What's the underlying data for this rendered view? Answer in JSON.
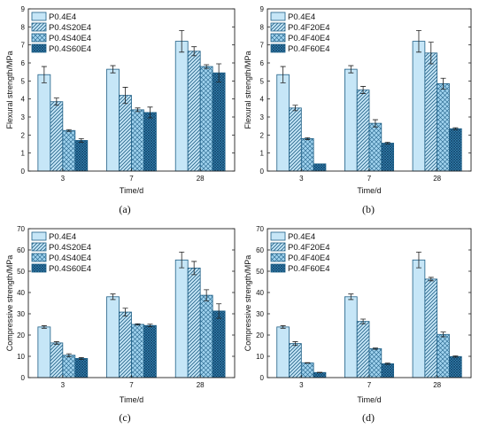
{
  "colors": {
    "bar_fill": "#c6e6f7",
    "bar_edge": "#1f5f86",
    "hatch": "#1f5f86",
    "dense_hatch": "#14527a"
  },
  "chart_data": [
    {
      "type": "bar",
      "caption": "(a)",
      "xlabel": "Time/d",
      "ylabel": "Flexural strength/MPa",
      "ylim": [
        0,
        9
      ],
      "yticks": [
        0,
        1,
        2,
        3,
        4,
        5,
        6,
        7,
        8,
        9
      ],
      "categories": [
        "3",
        "7",
        "28"
      ],
      "legend_placement": "top-left",
      "series": [
        {
          "name": "P0.4E4",
          "pattern": "solid",
          "values": [
            5.35,
            5.65,
            7.2
          ],
          "errors": [
            0.45,
            0.2,
            0.6
          ]
        },
        {
          "name": "P0.4S20E4",
          "pattern": "diag",
          "values": [
            3.85,
            4.2,
            6.65
          ],
          "errors": [
            0.2,
            0.45,
            0.25
          ]
        },
        {
          "name": "P0.4S40E4",
          "pattern": "cross",
          "values": [
            2.25,
            3.4,
            5.8
          ],
          "errors": [
            0.05,
            0.1,
            0.1
          ]
        },
        {
          "name": "P0.4S60E4",
          "pattern": "dense",
          "values": [
            1.7,
            3.25,
            5.45
          ],
          "errors": [
            0.1,
            0.3,
            0.5
          ]
        }
      ]
    },
    {
      "type": "bar",
      "caption": "(b)",
      "xlabel": "Time/d",
      "ylabel": "Flexural strength/MPa",
      "ylim": [
        0,
        9
      ],
      "yticks": [
        0,
        1,
        2,
        3,
        4,
        5,
        6,
        7,
        8,
        9
      ],
      "categories": [
        "3",
        "7",
        "28"
      ],
      "legend_placement": "top-left",
      "series": [
        {
          "name": "P0.4E4",
          "pattern": "solid",
          "values": [
            5.35,
            5.65,
            7.2
          ],
          "errors": [
            0.45,
            0.2,
            0.6
          ]
        },
        {
          "name": "P0.4F20E4",
          "pattern": "diag",
          "values": [
            3.5,
            4.5,
            6.55
          ],
          "errors": [
            0.15,
            0.2,
            0.6
          ]
        },
        {
          "name": "P0.4F40E4",
          "pattern": "cross",
          "values": [
            1.8,
            2.65,
            4.85
          ],
          "errors": [
            0.05,
            0.2,
            0.3
          ]
        },
        {
          "name": "P0.4F60E4",
          "pattern": "dense",
          "values": [
            0.4,
            1.55,
            2.35
          ],
          "errors": [
            0.0,
            0.05,
            0.05
          ]
        }
      ]
    },
    {
      "type": "bar",
      "caption": "(c)",
      "xlabel": "Time/d",
      "ylabel": "Compressive strength/MPa",
      "ylim": [
        0,
        70
      ],
      "yticks": [
        0,
        10,
        20,
        30,
        40,
        50,
        60,
        70
      ],
      "categories": [
        "3",
        "7",
        "28"
      ],
      "legend_placement": "top-left",
      "series": [
        {
          "name": "P0.4E4",
          "pattern": "solid",
          "values": [
            23.8,
            38.0,
            55.3
          ],
          "errors": [
            0.6,
            1.3,
            3.7
          ]
        },
        {
          "name": "P0.4S20E4",
          "pattern": "diag",
          "values": [
            16.3,
            30.8,
            51.5
          ],
          "errors": [
            0.6,
            1.8,
            3.1
          ]
        },
        {
          "name": "P0.4S40E4",
          "pattern": "cross",
          "values": [
            10.5,
            25.0,
            38.7
          ],
          "errors": [
            0.7,
            0.3,
            2.6
          ]
        },
        {
          "name": "P0.4S60E4",
          "pattern": "dense",
          "values": [
            9.0,
            24.5,
            31.3
          ],
          "errors": [
            0.4,
            0.6,
            3.4
          ]
        }
      ]
    },
    {
      "type": "bar",
      "caption": "(d)",
      "xlabel": "Time/d",
      "ylabel": "Compressive strength/MPa",
      "ylim": [
        0,
        70
      ],
      "yticks": [
        0,
        10,
        20,
        30,
        40,
        50,
        60,
        70
      ],
      "categories": [
        "3",
        "7",
        "28"
      ],
      "legend_placement": "top-left",
      "series": [
        {
          "name": "P0.4E4",
          "pattern": "solid",
          "values": [
            23.8,
            38.0,
            55.3
          ],
          "errors": [
            0.6,
            1.3,
            3.7
          ]
        },
        {
          "name": "P0.4F20E4",
          "pattern": "diag",
          "values": [
            16.0,
            26.4,
            46.3
          ],
          "errors": [
            0.9,
            1.1,
            0.8
          ]
        },
        {
          "name": "P0.4F40E4",
          "pattern": "cross",
          "values": [
            6.9,
            13.6,
            20.3
          ],
          "errors": [
            0.1,
            0.3,
            1.1
          ]
        },
        {
          "name": "P0.4F60E4",
          "pattern": "dense",
          "values": [
            2.4,
            6.5,
            9.9
          ],
          "errors": [
            0.1,
            0.3,
            0.3
          ]
        }
      ]
    }
  ]
}
